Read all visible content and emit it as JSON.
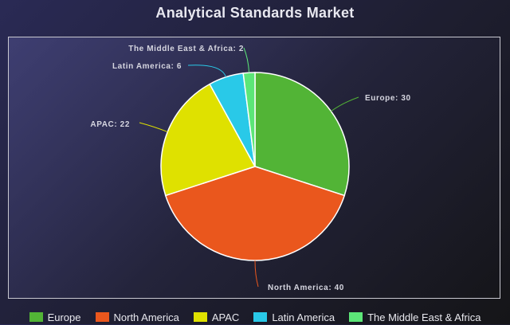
{
  "chart_data": {
    "type": "pie",
    "title": "Analytical Standards Market",
    "categories": [
      "Europe",
      "North America",
      "APAC",
      "Latin America",
      "The Middle East & Africa"
    ],
    "values": [
      30,
      40,
      22,
      6,
      2
    ],
    "data_labels": [
      "Europe: 30",
      "North America: 40",
      "APAC: 22",
      "Latin America: 6",
      "The Middle East & Africa: 2"
    ],
    "colors": [
      "#52b436",
      "#ea571d",
      "#dfe100",
      "#29c9e8",
      "#5ce678"
    ],
    "legend_position": "bottom",
    "start_angle": "top",
    "direction": "clockwise"
  }
}
